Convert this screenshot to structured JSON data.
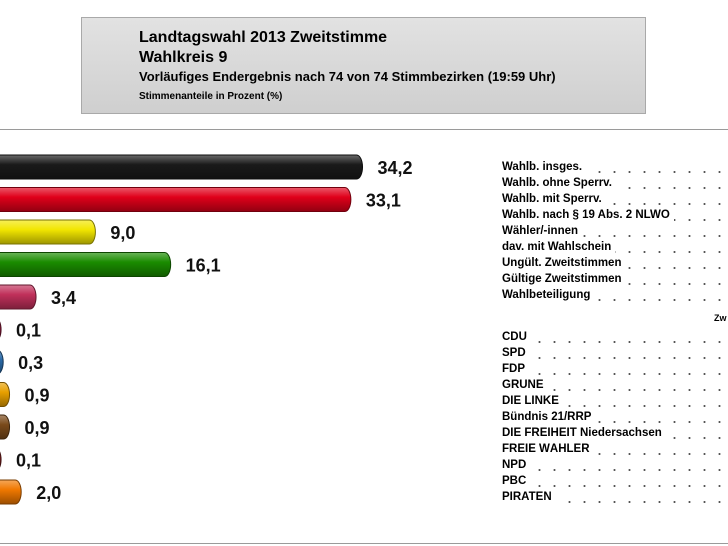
{
  "header": {
    "title": "Landtagswahl 2013 Zweitstimme",
    "subtitle": "Wahlkreis 9",
    "status": "Vorläufiges Endergebnis nach 74 von 74 Stimmbezirken (19:59 Uhr)",
    "unit": "Stimmenanteile in Prozent (%)"
  },
  "chart_data": {
    "type": "bar",
    "orientation": "horizontal",
    "values": [
      34.2,
      33.1,
      9.0,
      16.1,
      3.4,
      0.1,
      0.3,
      0.9,
      0.9,
      0.1,
      2.0
    ],
    "value_labels": [
      "34,2",
      "33,1",
      "9,0",
      "16,1",
      "3,4",
      "0,1",
      "0,3",
      "0,9",
      "0,9",
      "0,1",
      "2,0"
    ],
    "colors": [
      "#1a1a1a",
      "#e0001a",
      "#f2e600",
      "#1a8c00",
      "#c0305a",
      "#8a1a3a",
      "#2a6aa8",
      "#e8a000",
      "#7a4a1a",
      "#7a1e1e",
      "#f07800"
    ]
  },
  "stats_labels": [
    "Wahlb. insges.",
    "Wahlb. ohne Sperrv.",
    "Wahlb. mit Sperrv.",
    "Wahlb. nach § 19 Abs. 2 NLWO",
    "Wähler/-innen",
    "dav. mit Wahlschein",
    "Ungült. Zweitstimmen",
    "Gültige Zweitstimmen",
    "Wahlbeteiligung"
  ],
  "column_header": "Zw",
  "party_labels": [
    "CDU",
    "SPD",
    "FDP",
    "GRÜNE",
    "DIE LINKE",
    "Bündnis 21/RRP",
    "DIE FREIHEIT Niedersachsen",
    "FREIE WÄHLER",
    "NPD",
    "PBC",
    "PIRATEN"
  ]
}
